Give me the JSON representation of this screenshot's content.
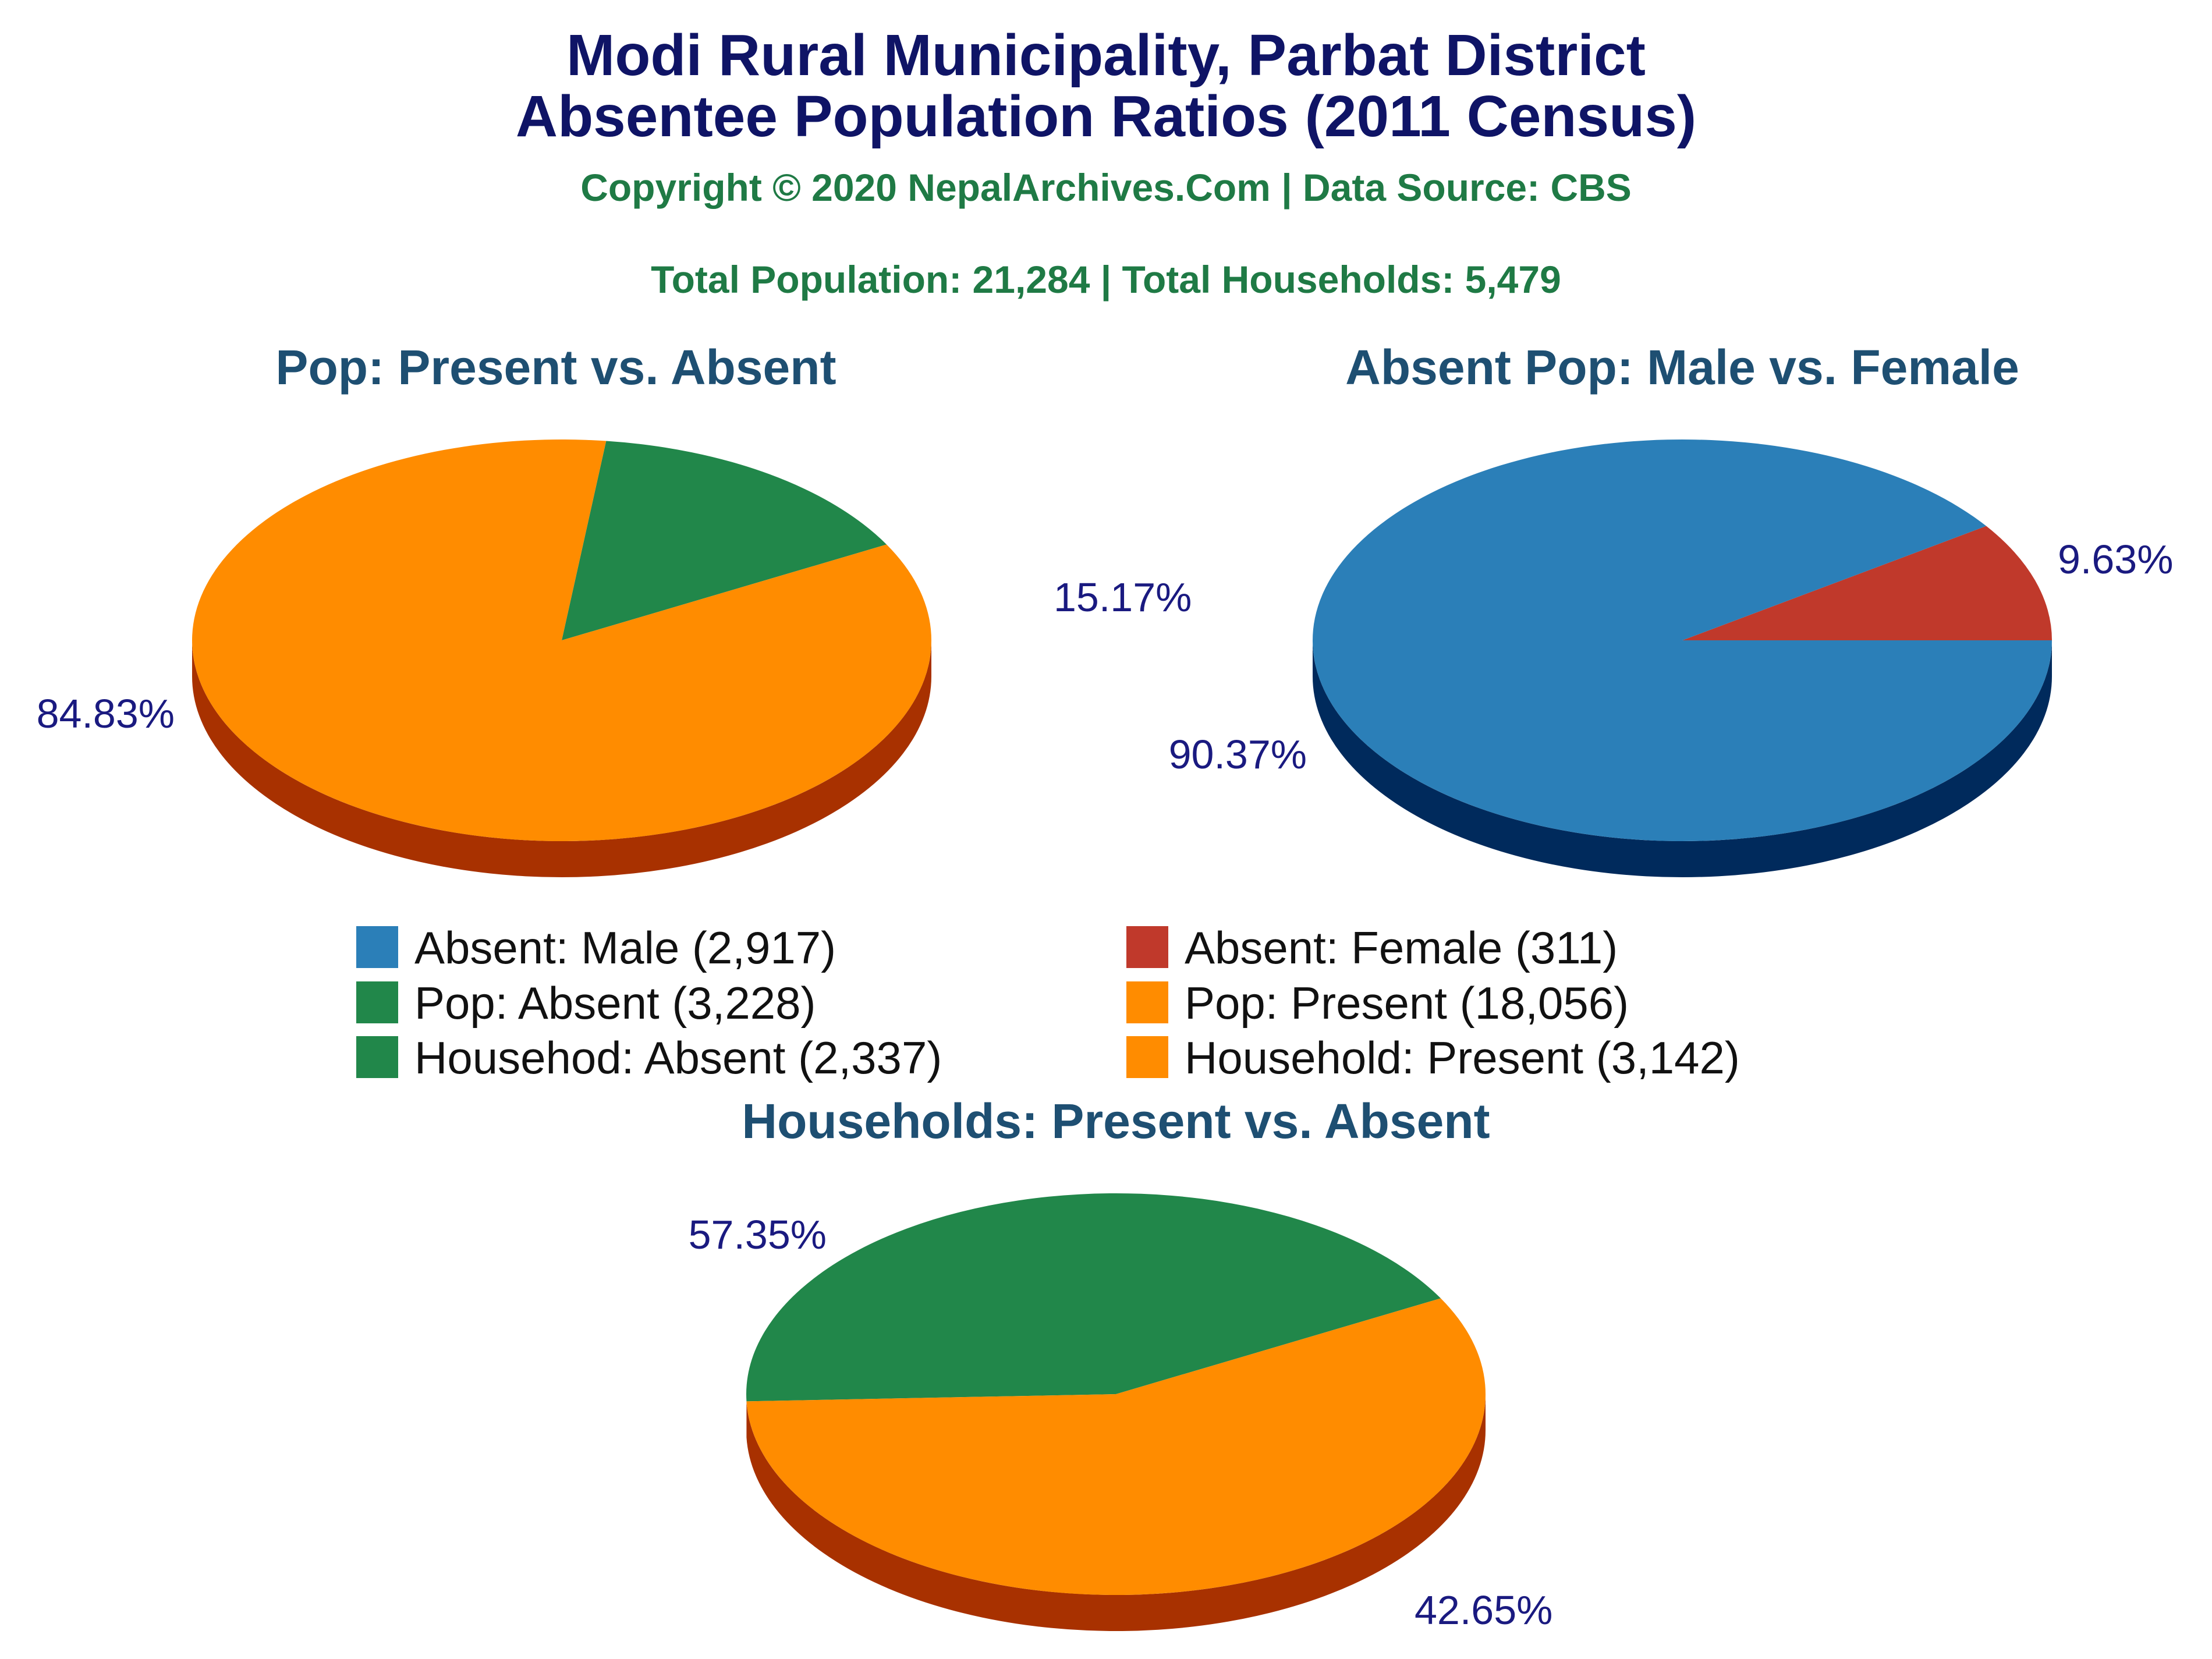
{
  "header": {
    "title_line1": "Modi Rural Municipality, Parbat District",
    "title_line2": "Absentee Population Ratios (2011 Census)",
    "copyright": "Copyright © 2020 NepalArchives.Com | Data Source: CBS",
    "totals": "Total Population: 21,284 | Total Households: 5,479"
  },
  "chart_data": [
    {
      "type": "pie",
      "title": "Pop: Present vs. Absent",
      "slices": [
        {
          "label": "Pop: Absent",
          "value": 3228,
          "pct_label": "15.17%",
          "color": "#21874a",
          "side": "#0b2e0a"
        },
        {
          "label": "Pop: Present",
          "value": 18056,
          "pct_label": "84.83%",
          "color": "#ff8c00",
          "side": "#a83100"
        }
      ]
    },
    {
      "type": "pie",
      "title": "Absent Pop: Male vs. Female",
      "slices": [
        {
          "label": "Absent: Female",
          "value": 311,
          "pct_label": "9.63%",
          "color": "#c0392b",
          "side": "#6e1a12"
        },
        {
          "label": "Absent: Male",
          "value": 2917,
          "pct_label": "90.37%",
          "color": "#2b7fb8",
          "side": "#002a5c"
        }
      ]
    },
    {
      "type": "pie",
      "title": "Households: Present vs. Absent",
      "slices": [
        {
          "label": "Household: Absent",
          "value": 2337,
          "pct_label": "42.65%",
          "color": "#21874a",
          "side": "#0b2e0a"
        },
        {
          "label": "Household: Present",
          "value": 3142,
          "pct_label": "57.35%",
          "color": "#ff8c00",
          "side": "#a83100"
        }
      ]
    }
  ],
  "legend": [
    {
      "text": "Absent: Male (2,917)",
      "color": "#2b7fb8"
    },
    {
      "text": "Absent: Female (311)",
      "color": "#c0392b"
    },
    {
      "text": "Pop: Absent (3,228)",
      "color": "#21874a"
    },
    {
      "text": "Pop: Present (18,056)",
      "color": "#ff8c00"
    },
    {
      "text": "Househod: Absent (2,337)",
      "color": "#21874a"
    },
    {
      "text": "Household: Present (3,142)",
      "color": "#ff8c00"
    }
  ]
}
